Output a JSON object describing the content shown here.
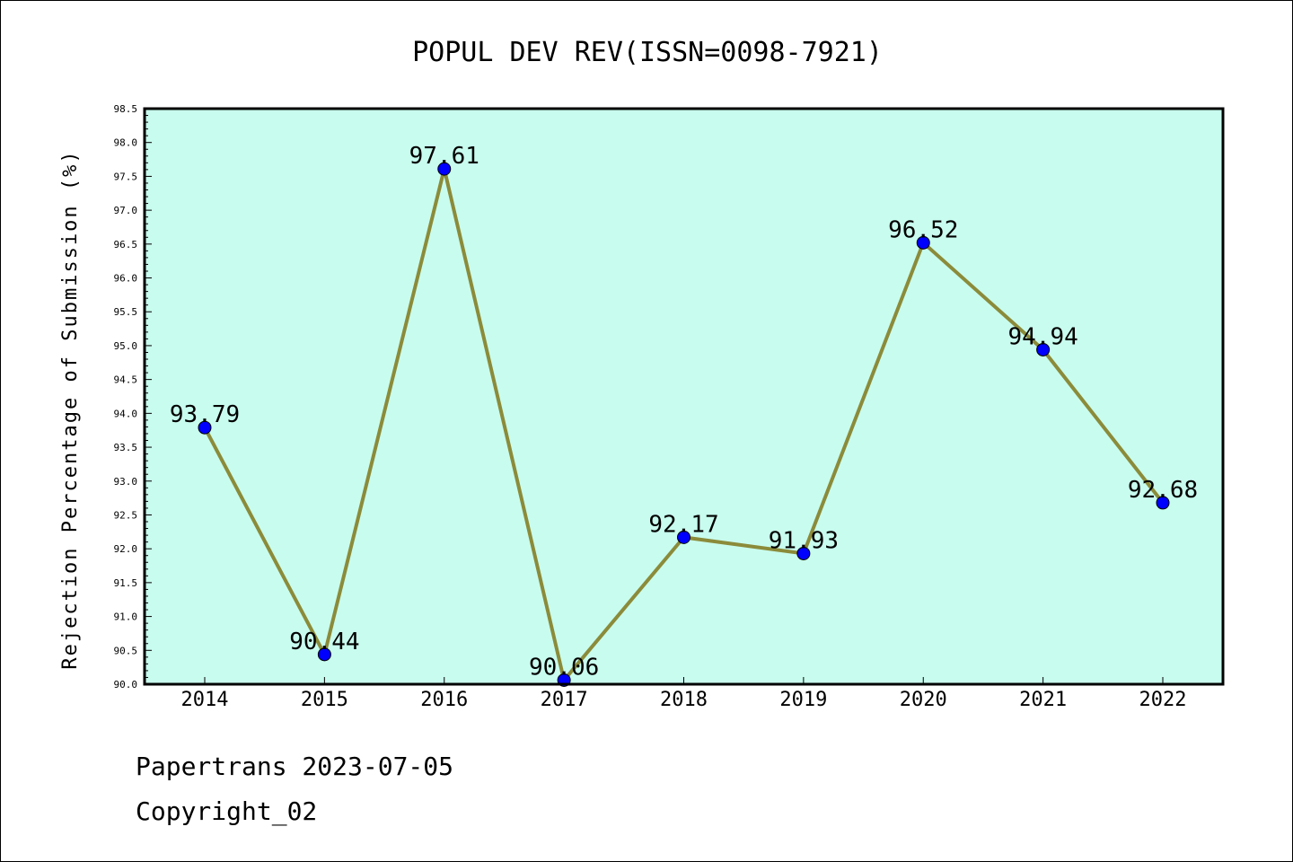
{
  "chart_data": {
    "type": "line",
    "title": "POPUL DEV REV(ISSN=0098-7921)",
    "xlabel": "",
    "ylabel": "Rejection Percentage of Submission (%)",
    "categories": [
      "2014",
      "2015",
      "2016",
      "2017",
      "2018",
      "2019",
      "2020",
      "2021",
      "2022"
    ],
    "series": [
      {
        "values": [
          93.79,
          90.44,
          97.61,
          90.06,
          92.17,
          91.93,
          96.52,
          94.94,
          92.68
        ],
        "labels": [
          "93.79",
          "90.44",
          "97.61",
          "90.06",
          "92.17",
          "91.93",
          "96.52",
          "94.94",
          "92.68"
        ]
      }
    ],
    "ylim": [
      90.0,
      98.5
    ],
    "yticks": [
      "90.0",
      "90.5",
      "91.0",
      "91.5",
      "92.0",
      "92.5",
      "93.0",
      "93.5",
      "94.0",
      "94.5",
      "95.0",
      "95.5",
      "96.0",
      "96.5",
      "97.0",
      "97.5",
      "98.0",
      "98.5"
    ],
    "grid": false,
    "colors": {
      "plot_background": "#c8fcee",
      "line": "#8b8b3a",
      "marker": "#0000ff"
    }
  },
  "footer": {
    "line1": "Papertrans 2023-07-05",
    "line2": "Copyright_02"
  }
}
